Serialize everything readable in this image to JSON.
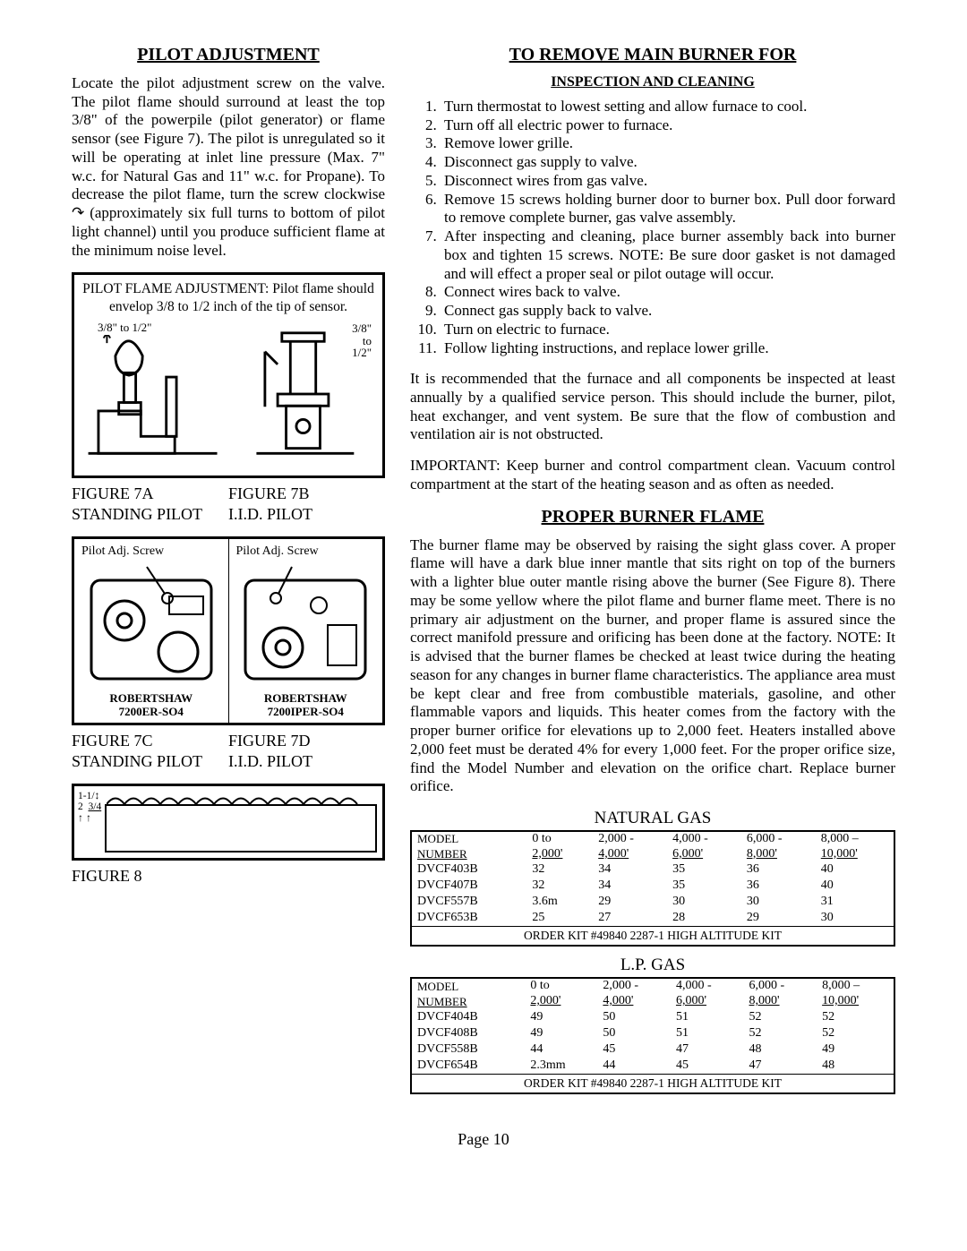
{
  "left": {
    "heading": "PILOT ADJUSTMENT",
    "para1": "Locate the pilot adjustment screw on the valve.  The pilot flame should surround at least the top 3/8\" of the powerpile (pilot generator) or flame sensor (see Figure 7).  The pilot is unregulated so it will be operating at inlet line pressure (Max. 7\" w.c. for Natural Gas and 11\" w.c. for Propane).  To decrease the pilot flame, turn the screw clockwise  ↷ (approximately six full turns to bottom of pilot light channel) until you produce sufficient flame at the minimum noise level.",
    "fig7_note": "PILOT FLAME ADJUSTMENT:  Pilot flame should envelop 3/8 to 1/2 inch of the tip of sensor.",
    "fig7_dim_a": "3/8\" to 1/2\"",
    "fig7_dim_b_line1": "3/8\"",
    "fig7_dim_b_line2": "to",
    "fig7_dim_b_line3": "1/2\"",
    "fig7a_label": "FIGURE 7A",
    "fig7a_sub": "STANDING PILOT",
    "fig7b_label": "FIGURE 7B",
    "fig7b_sub": "I.I.D. PILOT",
    "pilot_adj_screw": "Pilot Adj. Screw",
    "robertshaw_a_line1": "ROBERTSHAW",
    "robertshaw_a_line2": "7200ER-SO4",
    "robertshaw_b_line1": "ROBERTSHAW",
    "robertshaw_b_line2": "7200IPER-SO4",
    "fig7c_label": "FIGURE 7C",
    "fig7c_sub": "STANDING PILOT",
    "fig7d_label": "FIGURE 7D",
    "fig7d_sub": "I.I.D. PILOT",
    "fig8_dim1": "1-1/",
    "fig8_dim2": "2",
    "fig8_dim3": "3/4",
    "fig8_label": "FIGURE 8"
  },
  "right": {
    "heading": "TO REMOVE MAIN BURNER FOR",
    "sub": "INSPECTION AND CLEANING",
    "steps": [
      "Turn thermostat to lowest setting and allow furnace to cool.",
      "Turn off all electric power to furnace.",
      "Remove lower grille.",
      "Disconnect gas supply to valve.",
      "Disconnect wires from gas valve.",
      "Remove 15 screws holding burner door to burner box.  Pull door forward to remove complete burner, gas valve assembly.",
      "After inspecting and cleaning, place burner assembly back into burner box and tighten 15 screws.  NOTE:  Be sure door gasket is not damaged and will effect a proper seal or pilot outage will occur.",
      "Connect wires back to valve.",
      "Connect gas supply back to valve.",
      "Turn on electric to furnace.",
      "Follow lighting instructions, and replace lower grille."
    ],
    "para2": "It is recommended that the furnace and all components be inspected at least annually by a qualified service person.  This should include the burner, pilot, heat exchanger, and vent system.  Be sure that the flow of combustion and ventilation air is not obstructed.",
    "para3": "IMPORTANT:  Keep burner and control compartment clean.  Vacuum control compartment at the start of the heating season and as often as needed.",
    "heading2": "PROPER BURNER FLAME",
    "para4": "The burner flame may be observed by raising the sight glass cover.  A proper flame will have a dark blue inner mantle that sits right on top of the burners with a lighter blue outer mantle rising above the burner (See Figure 8).  There may be some yellow where the pilot flame and burner flame meet.  There is no primary air adjustment on the burner, and proper flame is assured since the correct manifold pressure and orificing has been done at the factory.  NOTE:  It is advised that the burner flames be checked at least twice during the heating season for any changes in burner flame characteristics.  The appliance area must be kept clear and free from combustible materials, gasoline, and other flammable vapors and liquids.  This heater comes from the factory with the proper burner orifice for elevations up to 2,000 feet.  Heaters installed above 2,000 feet must be derated 4% for every 1,000 feet.  For the proper orifice size, find the Model Number and elevation on the orifice chart.  Replace burner orifice."
  },
  "tables": {
    "ng_title": "NATURAL GAS",
    "lp_title": "L.P. GAS",
    "hdr_model": "MODEL",
    "hdr_number": "NUMBER",
    "cols_top": [
      "0 to",
      "2,000 -",
      "4,000 -",
      "6,000 -",
      "8,000 –"
    ],
    "cols_bottom": [
      "2,000'",
      "4,000'",
      "6,000'",
      "8,000'",
      "10,000'"
    ],
    "ng_rows": [
      [
        "DVCF403B",
        "32",
        "34",
        "35",
        "36",
        "40"
      ],
      [
        "DVCF407B",
        "32",
        "34",
        "35",
        "36",
        "40"
      ],
      [
        "DVCF557B",
        "3.6m",
        "29",
        "30",
        "30",
        "31"
      ],
      [
        "DVCF653B",
        "25",
        "27",
        "28",
        "29",
        "30"
      ]
    ],
    "lp_rows": [
      [
        "DVCF404B",
        "49",
        "50",
        "51",
        "52",
        "52"
      ],
      [
        "DVCF408B",
        "49",
        "50",
        "51",
        "52",
        "52"
      ],
      [
        "DVCF558B",
        "44",
        "45",
        "47",
        "48",
        "49"
      ],
      [
        "DVCF654B",
        "2.3mm",
        "44",
        "45",
        "47",
        "48"
      ]
    ],
    "kit_note": "ORDER KIT #49840  2287-1 HIGH ALTITUDE KIT"
  },
  "page": "Page 10"
}
